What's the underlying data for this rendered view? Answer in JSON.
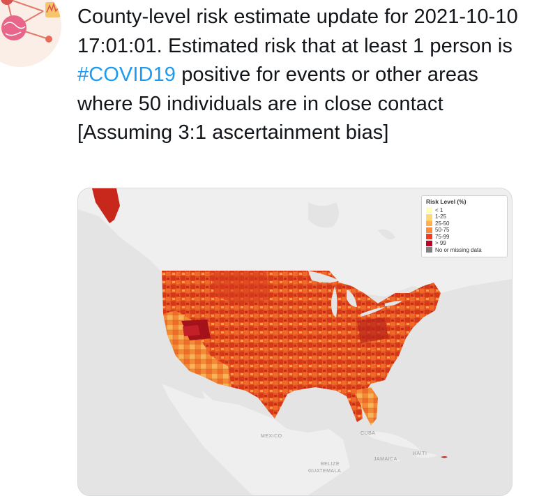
{
  "tweet": {
    "text_part1": "County-level risk estimate update for 2021-10-10 17:01:01.  Estimated risk that at least 1 person is ",
    "hashtag": "#COVID19",
    "text_part2": " positive for events or other areas where 50 individuals are in close contact [Assuming 3:1 ascertainment bias]"
  },
  "legend": {
    "title": "Risk Level (%)",
    "items": [
      {
        "label": "< 1",
        "color": "#ffffb2"
      },
      {
        "label": "1-25",
        "color": "#fed976"
      },
      {
        "label": "25-50",
        "color": "#feb24c"
      },
      {
        "label": "50-75",
        "color": "#fd8d3c"
      },
      {
        "label": "75-99",
        "color": "#f03b20"
      },
      {
        "label": "> 99",
        "color": "#bd0026"
      },
      {
        "label": "No or missing data",
        "color": "#808080"
      }
    ]
  },
  "map_labels": {
    "mexico": "MEXICO",
    "cuba": "CUBA",
    "haiti": "HAITI",
    "jamaica": "JAMAICA",
    "belize": "BELIZE",
    "guatemala": "GUATEMALA"
  },
  "colors": {
    "hashtag": "#1d9bf0",
    "water": "#e4e4e4",
    "land": "#f2f2f2"
  }
}
